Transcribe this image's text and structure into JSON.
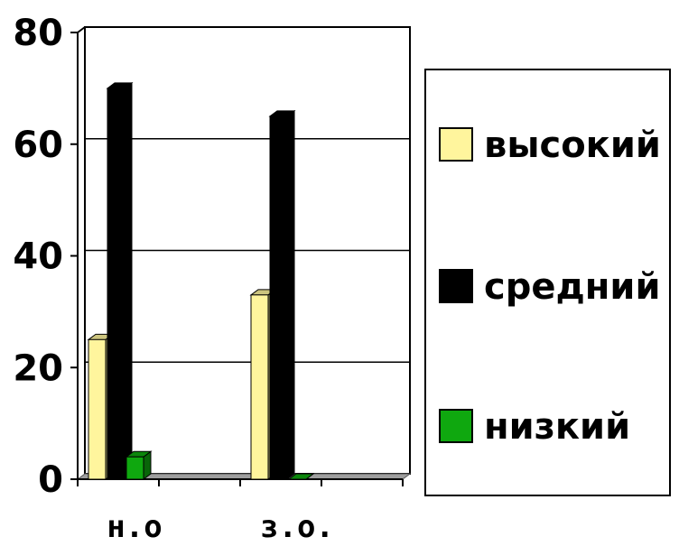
{
  "chart_data": {
    "type": "bar",
    "categories": [
      "н.о",
      "з.о."
    ],
    "series": [
      {
        "name": "высокий",
        "values": [
          25,
          33
        ],
        "color": "#FFF59D"
      },
      {
        "name": "средний",
        "values": [
          70,
          65
        ],
        "color": "#000000"
      },
      {
        "name": "низкий",
        "values": [
          4,
          0
        ],
        "color": "#0FA80F"
      }
    ],
    "ylim": [
      0,
      80
    ],
    "yticks": [
      "0",
      "20",
      "40",
      "60",
      "80"
    ],
    "grid": true,
    "legend_position": "right",
    "style": "3d"
  }
}
